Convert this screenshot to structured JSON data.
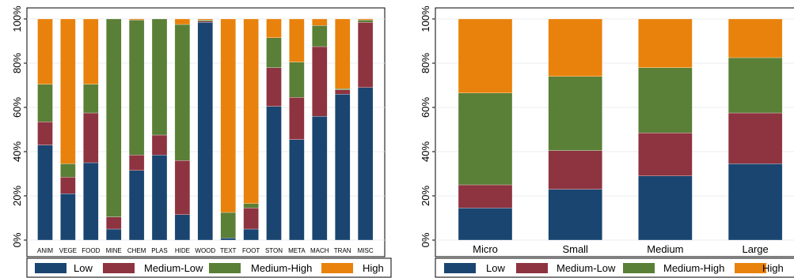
{
  "colors": {
    "Low": "#1a4570",
    "Medium-Low": "#8e3340",
    "Medium-High": "#5a7f36",
    "High": "#e8820c",
    "grid": "#e8ecef",
    "frame": "#000000"
  },
  "chart_data": [
    {
      "type": "bar",
      "stacked": true,
      "categories": [
        "ANIM",
        "VEGE",
        "FOOD",
        "MINE",
        "CHEM",
        "PLAS",
        "HIDE",
        "WOOD",
        "TEXT",
        "FOOT",
        "STON",
        "META",
        "MACH",
        "TRAN",
        "MISC"
      ],
      "series": [
        {
          "name": "Low",
          "values": [
            43,
            21,
            35,
            5,
            31.5,
            38.5,
            11.5,
            98.5,
            1,
            5,
            60.5,
            45.5,
            56,
            66,
            69
          ]
        },
        {
          "name": "Medium-Low",
          "values": [
            10.5,
            7.5,
            22.5,
            5.5,
            7,
            9,
            24.5,
            0.5,
            0,
            9.5,
            17.5,
            19,
            31.5,
            2,
            29.5
          ]
        },
        {
          "name": "Medium-High",
          "values": [
            17,
            6,
            13,
            89.5,
            61,
            52.5,
            61.5,
            0.5,
            11.5,
            2,
            13.5,
            16,
            9.5,
            0.5,
            1
          ]
        },
        {
          "name": "High",
          "values": [
            29.5,
            65.5,
            29.5,
            0,
            0.5,
            0,
            2.5,
            0.5,
            87.5,
            83.5,
            8.5,
            19.5,
            3,
            31.5,
            0.5
          ]
        }
      ],
      "y_ticks": [
        "0%",
        "20%",
        "40%",
        "60%",
        "80%",
        "100%"
      ],
      "ylim": [
        0,
        100
      ],
      "grid": true,
      "legend": "bottom"
    },
    {
      "type": "bar",
      "stacked": true,
      "categories": [
        "Micro",
        "Small",
        "Medium",
        "Large"
      ],
      "series": [
        {
          "name": "Low",
          "values": [
            14.5,
            23,
            29,
            34.5
          ]
        },
        {
          "name": "Medium-Low",
          "values": [
            10.5,
            17.5,
            19.5,
            23
          ]
        },
        {
          "name": "Medium-High",
          "values": [
            41.5,
            33.5,
            29.5,
            25
          ]
        },
        {
          "name": "High",
          "values": [
            33.5,
            26,
            22,
            17.5
          ]
        }
      ],
      "y_ticks": [
        "0%",
        "20%",
        "40%",
        "60%",
        "80%",
        "100%"
      ],
      "ylim": [
        0,
        100
      ],
      "grid": true,
      "legend": "bottom"
    }
  ]
}
